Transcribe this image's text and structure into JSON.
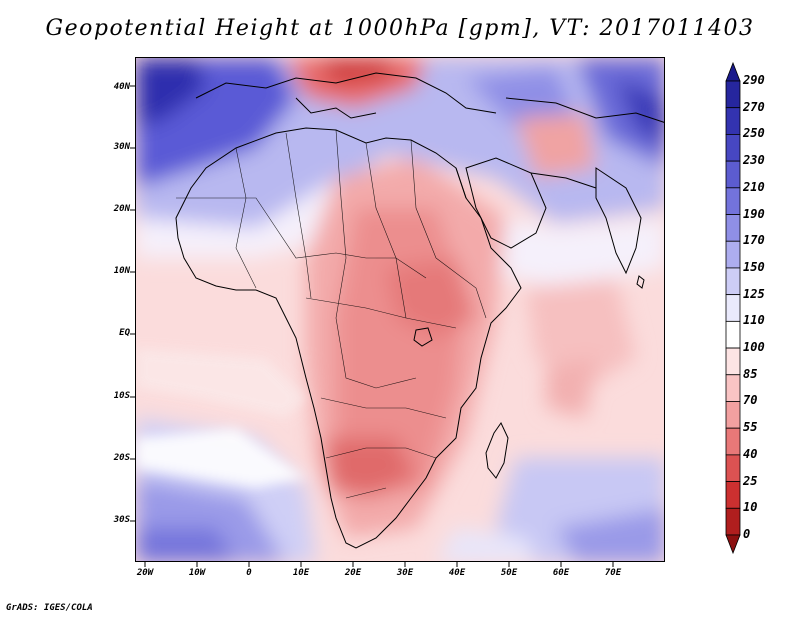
{
  "title": "Geopotential Height at 1000hPa [gpm], VT: 2017011403",
  "credit": "GrADS: IGES/COLA",
  "lat_labels": [
    "40N",
    "30N",
    "20N",
    "10N",
    "EQ",
    "10S",
    "20S",
    "30S"
  ],
  "lon_labels": [
    "20W",
    "10W",
    "0",
    "10E",
    "20E",
    "30E",
    "40E",
    "50E",
    "60E",
    "70E"
  ],
  "colorbar": {
    "labels": [
      "290",
      "270",
      "250",
      "230",
      "210",
      "190",
      "170",
      "150",
      "125",
      "110",
      "100",
      "85",
      "70",
      "55",
      "40",
      "25",
      "10",
      "0"
    ],
    "colors": [
      "#1a1a8c",
      "#26269e",
      "#3333b0",
      "#4747c2",
      "#5c5cd0",
      "#7373dc",
      "#8f8fe6",
      "#adadef",
      "#cdcdf6",
      "#eaeafc",
      "#ffffff",
      "#fde4e4",
      "#f9c4c4",
      "#f2a0a0",
      "#e87878",
      "#dc5252",
      "#cc3030",
      "#b01e1e",
      "#8c1010"
    ]
  }
}
